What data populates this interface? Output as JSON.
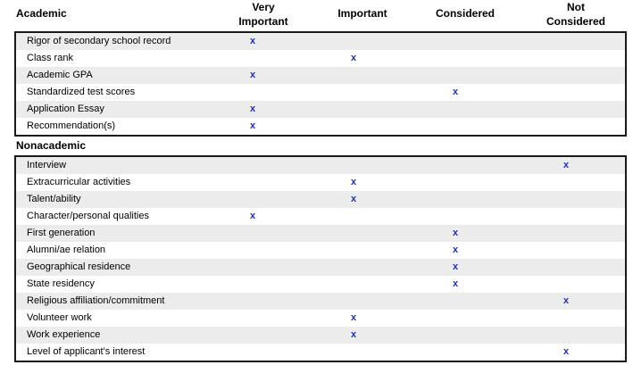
{
  "header": {
    "academic": "Academic",
    "very_important_line1": "Very",
    "very_important_line2": "Important",
    "important": "Important",
    "considered": "Considered",
    "not_considered_line1": "Not",
    "not_considered_line2": "Considered"
  },
  "nonacademic_label": "Nonacademic",
  "mark": "x",
  "academic_rows": [
    {
      "label": "Rigor of secondary school record",
      "level": "very_important"
    },
    {
      "label": "Class rank",
      "level": "important"
    },
    {
      "label": "Academic GPA",
      "level": "very_important"
    },
    {
      "label": "Standardized test scores",
      "level": "considered"
    },
    {
      "label": "Application Essay",
      "level": "very_important"
    },
    {
      "label": "Recommendation(s)",
      "level": "very_important"
    }
  ],
  "nonacademic_rows": [
    {
      "label": "Interview",
      "level": "not_considered"
    },
    {
      "label": "Extracurricular activities",
      "level": "important"
    },
    {
      "label": "Talent/ability",
      "level": "important"
    },
    {
      "label": "Character/personal qualities",
      "level": "very_important"
    },
    {
      "label": "First generation",
      "level": "considered"
    },
    {
      "label": "Alumni/ae relation",
      "level": "considered"
    },
    {
      "label": "Geographical residence",
      "level": "considered"
    },
    {
      "label": "State residency",
      "level": "considered"
    },
    {
      "label": "Religious affiliation/commitment",
      "level": "not_considered"
    },
    {
      "label": "Volunteer work",
      "level": "important"
    },
    {
      "label": "Work experience",
      "level": "important"
    },
    {
      "label": "Level of applicant's interest",
      "level": "not_considered"
    }
  ]
}
